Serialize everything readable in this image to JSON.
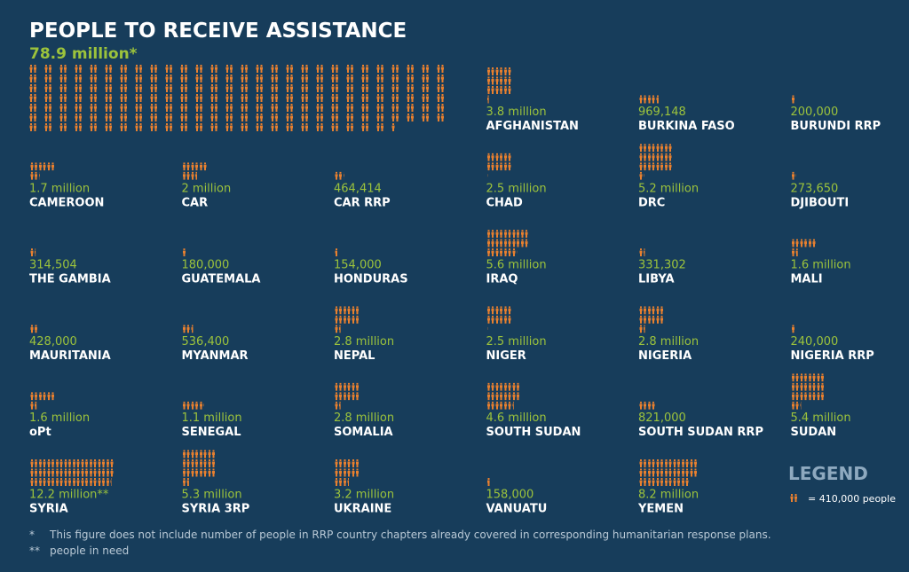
{
  "header": {
    "title": "PEOPLE TO RECEIVE ASSISTANCE",
    "total": {
      "value": 78900000,
      "label": "78.9 million*"
    }
  },
  "countries": [
    {
      "name": "AFGHANISTAN",
      "value": 3800000,
      "label": "3.8 million"
    },
    {
      "name": "BURKINA FASO",
      "value": 969148,
      "label": "969,148"
    },
    {
      "name": "BURUNDI RRP",
      "value": 200000,
      "label": "200,000"
    },
    {
      "name": "CAMEROON",
      "value": 1700000,
      "label": "1.7 million"
    },
    {
      "name": "CAR",
      "value": 2000000,
      "label": "2 million"
    },
    {
      "name": "CAR RRP",
      "value": 464414,
      "label": "464,414"
    },
    {
      "name": "CHAD",
      "value": 2500000,
      "label": "2.5 million"
    },
    {
      "name": "DRC",
      "value": 5200000,
      "label": "5.2 million"
    },
    {
      "name": "DJIBOUTI",
      "value": 273650,
      "label": "273,650"
    },
    {
      "name": "THE GAMBIA",
      "value": 314504,
      "label": "314,504"
    },
    {
      "name": "GUATEMALA",
      "value": 180000,
      "label": "180,000"
    },
    {
      "name": "HONDURAS",
      "value": 154000,
      "label": "154,000"
    },
    {
      "name": "IRAQ",
      "value": 5600000,
      "label": "5.6 million"
    },
    {
      "name": "LIBYA",
      "value": 331302,
      "label": "331,302"
    },
    {
      "name": "MALI",
      "value": 1600000,
      "label": "1.6 million"
    },
    {
      "name": "MAURITANIA",
      "value": 428000,
      "label": "428,000"
    },
    {
      "name": "MYANMAR",
      "value": 536400,
      "label": "536,400"
    },
    {
      "name": "NEPAL",
      "value": 2800000,
      "label": "2.8 million"
    },
    {
      "name": "NIGER",
      "value": 2500000,
      "label": "2.5 million"
    },
    {
      "name": "NIGERIA",
      "value": 2800000,
      "label": "2.8 million"
    },
    {
      "name": "NIGERIA RRP",
      "value": 240000,
      "label": "240,000"
    },
    {
      "name": "oPt",
      "value": 1600000,
      "label": "1.6 million"
    },
    {
      "name": "SENEGAL",
      "value": 1100000,
      "label": "1.1 million"
    },
    {
      "name": "SOMALIA",
      "value": 2800000,
      "label": "2.8 million"
    },
    {
      "name": "SOUTH SUDAN",
      "value": 4600000,
      "label": "4.6 million"
    },
    {
      "name": "SOUTH SUDAN RRP",
      "value": 821000,
      "label": "821,000"
    },
    {
      "name": "SUDAN",
      "value": 5400000,
      "label": "5.4 million"
    },
    {
      "name": "SYRIA",
      "value": 12200000,
      "label": "12.2 million**"
    },
    {
      "name": "SYRIA 3RP",
      "value": 5300000,
      "label": "5.3 million"
    },
    {
      "name": "UKRAINE",
      "value": 3200000,
      "label": "3.2 million"
    },
    {
      "name": "VANUATU",
      "value": 158000,
      "label": "158,000"
    },
    {
      "name": "YEMEN",
      "value": 8200000,
      "label": "8.2 million"
    }
  ],
  "legend": {
    "title": "LEGEND",
    "unit": {
      "value": 410000,
      "label": "= 410,000 people"
    }
  },
  "footnotes": [
    {
      "mark": "*",
      "text": "This figure does not include number of people in RRP country chapters already covered in corresponding humanitarian response plans."
    },
    {
      "mark": "**",
      "text": "people in need"
    }
  ]
}
